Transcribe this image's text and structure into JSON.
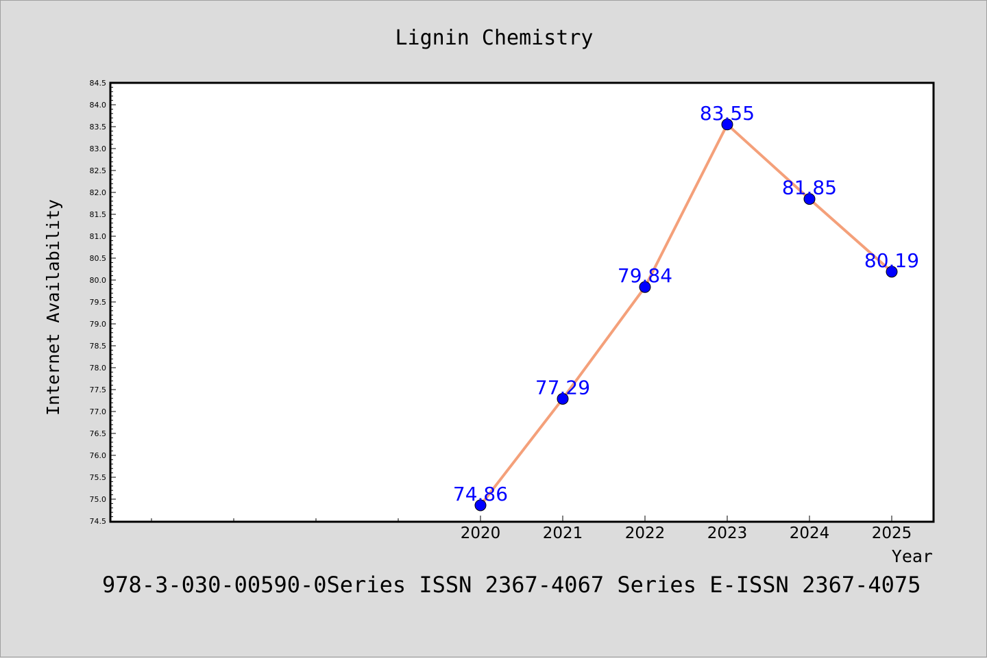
{
  "chart_data": {
    "type": "line",
    "title": "Lignin Chemistry",
    "xlabel": "Year",
    "ylabel": "Internet Availability",
    "footer": "978-3-030-00590-0Series ISSN 2367-4067 Series E-ISSN 2367-4075",
    "categories": [
      "2020",
      "2021",
      "2022",
      "2023",
      "2024",
      "2025"
    ],
    "series": [
      {
        "values": [
          74.86,
          77.29,
          79.84,
          83.55,
          81.85,
          80.19
        ],
        "labels": [
          "74.86",
          "77.29",
          "79.84",
          "83.55",
          "81.85",
          "80.19"
        ]
      }
    ],
    "ylim": [
      74.5,
      84.5
    ],
    "y_ticks": [
      "74.5",
      "75.0",
      "75.5",
      "76.0",
      "76.5",
      "77.0",
      "77.5",
      "78.0",
      "78.5",
      "79.0",
      "79.5",
      "80.0",
      "80.5",
      "81.0",
      "81.5",
      "82.0",
      "82.5",
      "83.0",
      "83.5",
      "84.0",
      "84.5"
    ],
    "grid": false,
    "line_color": "#f4a07a",
    "marker_color": "#0000ff",
    "label_color": "#0000ff"
  }
}
